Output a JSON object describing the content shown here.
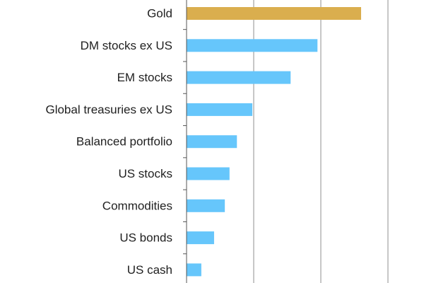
{
  "chart_data": {
    "type": "bar",
    "orientation": "horizontal",
    "categories": [
      "Gold",
      "DM stocks ex US",
      "EM stocks",
      "Global treasuries ex US",
      "Balanced portfolio",
      "US stocks",
      "Commodities",
      "US bonds",
      "US cash"
    ],
    "values": [
      26,
      19.5,
      15.5,
      9.8,
      7.5,
      6.4,
      5.7,
      4.1,
      2.2
    ],
    "bar_colors": [
      "#DAAE4E",
      "#66C6FB",
      "#66C6FB",
      "#66C6FB",
      "#66C6FB",
      "#66C6FB",
      "#66C6FB",
      "#66C6FB",
      "#66C6FB"
    ],
    "xlim": [
      0,
      30
    ],
    "grid": true,
    "gridline_values": [
      10,
      20,
      30
    ],
    "title": "",
    "xlabel": "",
    "ylabel": ""
  }
}
